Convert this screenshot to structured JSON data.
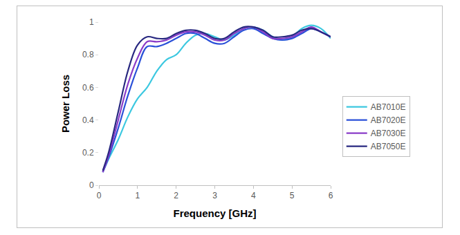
{
  "chart_data": {
    "type": "line",
    "x_label": "Frequency [GHz]",
    "y_label": "Power Loss",
    "x": [
      0.1,
      0.25,
      0.5,
      0.75,
      1.0,
      1.25,
      1.5,
      1.75,
      2.0,
      2.25,
      2.5,
      2.75,
      3.0,
      3.25,
      3.5,
      3.75,
      4.0,
      4.25,
      4.5,
      4.75,
      5.0,
      5.25,
      5.5,
      5.75,
      6.0
    ],
    "series": [
      {
        "name": "AB7010E",
        "color": "#3cc8e0",
        "values": [
          0.08,
          0.16,
          0.28,
          0.42,
          0.53,
          0.6,
          0.7,
          0.77,
          0.8,
          0.87,
          0.92,
          0.93,
          0.91,
          0.89,
          0.92,
          0.96,
          0.97,
          0.95,
          0.91,
          0.89,
          0.91,
          0.96,
          0.98,
          0.96,
          0.9
        ]
      },
      {
        "name": "AB7020E",
        "color": "#2a50d8",
        "values": [
          0.08,
          0.17,
          0.35,
          0.55,
          0.72,
          0.85,
          0.85,
          0.87,
          0.9,
          0.93,
          0.93,
          0.9,
          0.87,
          0.87,
          0.91,
          0.95,
          0.96,
          0.93,
          0.9,
          0.89,
          0.9,
          0.93,
          0.96,
          0.94,
          0.91
        ]
      },
      {
        "name": "AB7030E",
        "color": "#8a3cc8",
        "values": [
          0.08,
          0.18,
          0.4,
          0.62,
          0.78,
          0.88,
          0.88,
          0.89,
          0.92,
          0.94,
          0.94,
          0.92,
          0.89,
          0.89,
          0.93,
          0.96,
          0.97,
          0.94,
          0.9,
          0.9,
          0.91,
          0.94,
          0.97,
          0.94,
          0.91
        ]
      },
      {
        "name": "AB7050E",
        "color": "#282880",
        "values": [
          0.09,
          0.2,
          0.45,
          0.7,
          0.86,
          0.91,
          0.9,
          0.9,
          0.93,
          0.95,
          0.95,
          0.93,
          0.9,
          0.9,
          0.94,
          0.97,
          0.97,
          0.95,
          0.91,
          0.91,
          0.92,
          0.95,
          0.96,
          0.94,
          0.91
        ]
      }
    ],
    "xlim": [
      0,
      6
    ],
    "xticks": [
      0,
      1,
      2,
      3,
      4,
      5,
      6
    ],
    "ylim": [
      0,
      1
    ],
    "yticks": [
      0,
      0.2,
      0.4,
      0.6,
      0.8,
      1
    ],
    "grid": false,
    "legend": "right"
  }
}
